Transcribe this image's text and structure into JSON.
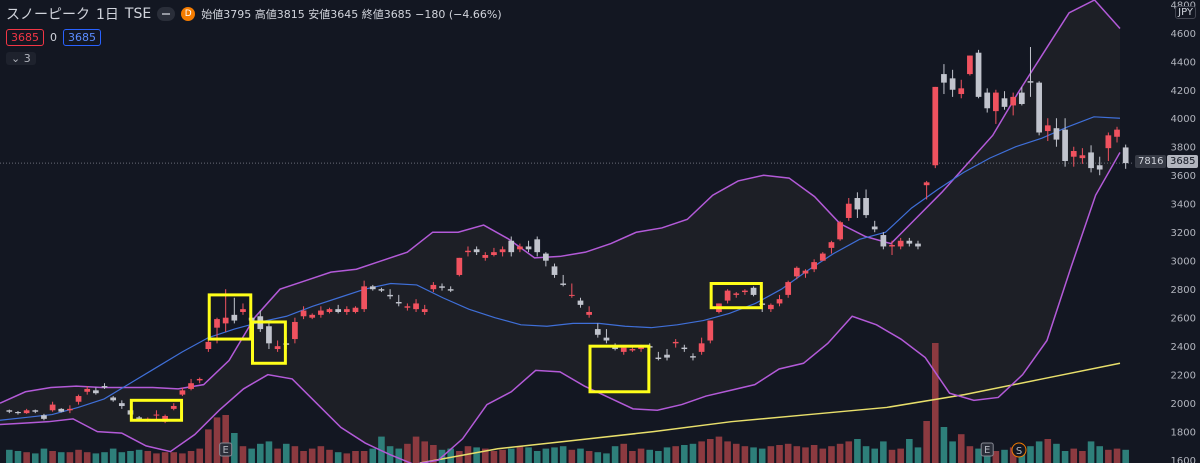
{
  "header": {
    "symbol": "スノーピーク",
    "interval": "1日",
    "exchange": "TSE",
    "badge": "D",
    "ohlc": "始値3795 高値3815 安値3645 終値3685 −180 (−4.66%)"
  },
  "price_boxes": {
    "bid": "3685",
    "spread": "0",
    "ask": "3685"
  },
  "indicators_toggle": "3",
  "currency": "JPY",
  "axis": {
    "ticks": [
      4800,
      4600,
      4400,
      4200,
      4000,
      3800,
      3600,
      3400,
      3200,
      3000,
      2800,
      2600,
      2400,
      2200,
      2000,
      1800,
      1600
    ],
    "ymin": 1580,
    "ymax": 4830,
    "current_price_label": "3685",
    "volume_label": "7816"
  },
  "markers": {
    "earnings": "E",
    "split": "S"
  },
  "colors": {
    "up": "#f0525f",
    "down": "#c1c4cd",
    "bb": "#b35ad8",
    "ma": "#3f6fd8",
    "ma_long": "#e8df6b",
    "highlight": "#ffff1a",
    "vol_up": "#8c3a40",
    "vol_down": "#2e7f7a"
  },
  "chart_data": {
    "type": "candlestick",
    "unit": "JPY",
    "candles": [
      [
        1950,
        1955,
        1930,
        1940
      ],
      [
        1938,
        1945,
        1920,
        1930
      ],
      [
        1930,
        1960,
        1925,
        1950
      ],
      [
        1950,
        1955,
        1930,
        1940
      ],
      [
        1915,
        1925,
        1880,
        1890
      ],
      [
        1950,
        2010,
        1940,
        1990
      ],
      [
        1960,
        1965,
        1935,
        1940
      ],
      [
        1950,
        1985,
        1930,
        1960
      ],
      [
        2010,
        2060,
        1990,
        2050
      ],
      [
        2080,
        2120,
        2060,
        2100
      ],
      [
        2090,
        2110,
        2060,
        2070
      ],
      [
        2120,
        2140,
        2100,
        2110
      ],
      [
        2040,
        2050,
        2010,
        2020
      ],
      [
        2000,
        2020,
        1960,
        1980
      ],
      [
        1950,
        1960,
        1910,
        1920
      ],
      [
        1900,
        1910,
        1880,
        1890
      ],
      [
        1880,
        1900,
        1870,
        1890
      ],
      [
        1920,
        1950,
        1880,
        1920
      ],
      [
        1870,
        1920,
        1860,
        1910
      ],
      [
        1960,
        2000,
        1950,
        1980
      ],
      [
        2060,
        2110,
        2050,
        2090
      ],
      [
        2100,
        2170,
        2090,
        2140
      ],
      [
        2160,
        2180,
        2140,
        2170
      ],
      [
        2380,
        2440,
        2360,
        2430
      ],
      [
        2530,
        2600,
        2420,
        2590
      ],
      [
        2560,
        2800,
        2500,
        2600
      ],
      [
        2620,
        2740,
        2560,
        2580
      ],
      [
        2640,
        2700,
        2620,
        2660
      ],
      [
        2600,
        2620,
        2560,
        2580
      ],
      [
        2610,
        2650,
        2500,
        2520
      ],
      [
        2540,
        2560,
        2380,
        2420
      ],
      [
        2380,
        2440,
        2360,
        2400
      ],
      [
        2420,
        2460,
        2380,
        2410
      ],
      [
        2450,
        2600,
        2420,
        2570
      ],
      [
        2610,
        2680,
        2590,
        2650
      ],
      [
        2600,
        2630,
        2590,
        2620
      ],
      [
        2620,
        2680,
        2600,
        2650
      ],
      [
        2640,
        2670,
        2630,
        2660
      ],
      [
        2660,
        2690,
        2630,
        2640
      ],
      [
        2640,
        2680,
        2620,
        2660
      ],
      [
        2640,
        2680,
        2630,
        2670
      ],
      [
        2660,
        2860,
        2640,
        2820
      ],
      [
        2820,
        2830,
        2790,
        2800
      ],
      [
        2800,
        2810,
        2780,
        2790
      ],
      [
        2760,
        2800,
        2730,
        2750
      ],
      [
        2710,
        2760,
        2680,
        2700
      ],
      [
        2670,
        2700,
        2650,
        2680
      ],
      [
        2660,
        2730,
        2640,
        2700
      ],
      [
        2640,
        2690,
        2620,
        2660
      ],
      [
        2800,
        2850,
        2780,
        2830
      ],
      [
        2820,
        2840,
        2790,
        2810
      ],
      [
        2800,
        2820,
        2780,
        2790
      ],
      [
        2900,
        3020,
        2890,
        3020
      ],
      [
        3060,
        3100,
        3030,
        3070
      ],
      [
        3080,
        3100,
        3040,
        3060
      ],
      [
        3020,
        3060,
        3000,
        3040
      ],
      [
        3040,
        3090,
        3030,
        3060
      ],
      [
        3060,
        3100,
        3030,
        3080
      ],
      [
        3140,
        3170,
        3030,
        3060
      ],
      [
        3080,
        3120,
        3060,
        3100
      ],
      [
        3100,
        3140,
        3060,
        3080
      ],
      [
        3150,
        3170,
        3030,
        3060
      ],
      [
        3050,
        3060,
        2960,
        3000
      ],
      [
        2960,
        2980,
        2880,
        2900
      ],
      [
        2840,
        2900,
        2820,
        2830
      ],
      [
        2760,
        2840,
        2740,
        2760
      ],
      [
        2720,
        2740,
        2670,
        2690
      ],
      [
        2620,
        2680,
        2600,
        2640
      ],
      [
        2520,
        2560,
        2460,
        2480
      ],
      [
        2460,
        2520,
        2420,
        2440
      ],
      [
        2400,
        2420,
        2370,
        2380
      ],
      [
        2360,
        2400,
        2340,
        2390
      ],
      [
        2370,
        2400,
        2360,
        2380
      ],
      [
        2380,
        2410,
        2360,
        2400
      ],
      [
        2400,
        2420,
        2370,
        2390
      ],
      [
        2320,
        2360,
        2300,
        2310
      ],
      [
        2340,
        2380,
        2300,
        2320
      ],
      [
        2420,
        2450,
        2390,
        2430
      ],
      [
        2390,
        2410,
        2360,
        2380
      ],
      [
        2330,
        2350,
        2300,
        2320
      ],
      [
        2360,
        2460,
        2340,
        2420
      ],
      [
        2440,
        2580,
        2420,
        2580
      ],
      [
        2640,
        2700,
        2630,
        2700
      ],
      [
        2720,
        2800,
        2700,
        2790
      ],
      [
        2760,
        2780,
        2740,
        2770
      ],
      [
        2780,
        2800,
        2760,
        2790
      ],
      [
        2810,
        2820,
        2750,
        2760
      ],
      [
        2700,
        2730,
        2640,
        2690
      ],
      [
        2660,
        2700,
        2640,
        2690
      ],
      [
        2700,
        2760,
        2680,
        2730
      ],
      [
        2760,
        2860,
        2740,
        2850
      ],
      [
        2890,
        2960,
        2870,
        2950
      ],
      [
        2910,
        2940,
        2880,
        2930
      ],
      [
        2940,
        3010,
        2920,
        2990
      ],
      [
        3000,
        3060,
        3000,
        3050
      ],
      [
        3090,
        3140,
        3050,
        3130
      ],
      [
        3150,
        3280,
        3140,
        3270
      ],
      [
        3300,
        3440,
        3280,
        3400
      ],
      [
        3440,
        3480,
        3300,
        3360
      ],
      [
        3440,
        3500,
        3300,
        3320
      ],
      [
        3240,
        3280,
        3200,
        3220
      ],
      [
        3180,
        3200,
        3080,
        3100
      ],
      [
        3100,
        3140,
        3040,
        3110
      ],
      [
        3100,
        3160,
        3080,
        3140
      ],
      [
        3140,
        3160,
        3100,
        3120
      ],
      [
        3120,
        3140,
        3080,
        3100
      ],
      [
        3530,
        3560,
        3430,
        3550
      ],
      [
        3670,
        4220,
        3650,
        4220
      ],
      [
        4310,
        4380,
        4170,
        4250
      ],
      [
        4280,
        4340,
        4150,
        4200
      ],
      [
        4170,
        4270,
        4140,
        4210
      ],
      [
        4310,
        4440,
        4300,
        4440
      ],
      [
        4460,
        4480,
        4140,
        4150
      ],
      [
        4180,
        4210,
        4040,
        4070
      ],
      [
        4050,
        4200,
        3960,
        4180
      ],
      [
        4140,
        4190,
        4060,
        4080
      ],
      [
        4090,
        4180,
        4020,
        4150
      ],
      [
        4180,
        4220,
        4090,
        4100
      ],
      [
        4260,
        4500,
        4150,
        4250
      ],
      [
        4250,
        4260,
        3880,
        3900
      ],
      [
        3910,
        4000,
        3840,
        3950
      ],
      [
        3930,
        4000,
        3800,
        3850
      ],
      [
        3920,
        4000,
        3660,
        3700
      ],
      [
        3730,
        3800,
        3660,
        3770
      ],
      [
        3720,
        3790,
        3680,
        3740
      ],
      [
        3760,
        3810,
        3620,
        3650
      ],
      [
        3670,
        3730,
        3600,
        3640
      ],
      [
        3790,
        3900,
        3700,
        3880
      ],
      [
        3870,
        3940,
        3830,
        3920
      ],
      [
        3795,
        3815,
        3645,
        3685
      ]
    ],
    "volumes": [
      11,
      10,
      9,
      8,
      12,
      10,
      9,
      9,
      11,
      9,
      8,
      9,
      12,
      9,
      10,
      11,
      10,
      8,
      9,
      9,
      8,
      10,
      12,
      28,
      38,
      40,
      25,
      14,
      12,
      16,
      18,
      12,
      16,
      14,
      10,
      12,
      14,
      11,
      9,
      8,
      10,
      10,
      12,
      22,
      14,
      12,
      16,
      22,
      18,
      15,
      11,
      12,
      10,
      14,
      13,
      12,
      10,
      11,
      12,
      14,
      13,
      10,
      12,
      13,
      14,
      11,
      12,
      10,
      9,
      8,
      14,
      16,
      10,
      12,
      11,
      10,
      13,
      14,
      15,
      16,
      18,
      20,
      22,
      18,
      16,
      14,
      13,
      12,
      14,
      15,
      16,
      14,
      13,
      15,
      12,
      14,
      16,
      18,
      20,
      14,
      12,
      18,
      11,
      12,
      20,
      13,
      35,
      100,
      30,
      18,
      24,
      14,
      12,
      16,
      10,
      11,
      13,
      12,
      14,
      18,
      20,
      16,
      10,
      12,
      10,
      18,
      14,
      11,
      12,
      11
    ],
    "bollinger_upper": [
      2000,
      2080,
      2110,
      2120,
      2110,
      2110,
      2110,
      2100,
      2130,
      2300,
      2600,
      2800,
      2860,
      2920,
      2940,
      3000,
      3060,
      3200,
      3200,
      3250,
      3150,
      3020,
      3030,
      3060,
      3120,
      3200,
      3230,
      3290,
      3460,
      3560,
      3600,
      3580,
      3450,
      3260,
      3170,
      3120,
      3300,
      3480,
      3680,
      3880,
      4180,
      4460,
      4740,
      4830,
      4630
    ],
    "bollinger_lower": [
      1850,
      1860,
      1870,
      1890,
      1800,
      1790,
      1700,
      1660,
      1780,
      1950,
      2100,
      2200,
      2170,
      2000,
      1830,
      1720,
      1640,
      1570,
      1600,
      1750,
      1990,
      2080,
      2230,
      2220,
      2120,
      2040,
      1960,
      1950,
      1990,
      2050,
      2090,
      2130,
      2240,
      2280,
      2420,
      2610,
      2550,
      2450,
      2320,
      2070,
      2020,
      2040,
      2200,
      2440,
      2960,
      3460,
      3760
    ],
    "ma_20": [
      1880,
      1900,
      1920,
      1970,
      2030,
      2140,
      2250,
      2360,
      2460,
      2520,
      2570,
      2610,
      2680,
      2740,
      2800,
      2840,
      2830,
      2740,
      2660,
      2600,
      2550,
      2540,
      2560,
      2560,
      2540,
      2530,
      2550,
      2580,
      2630,
      2700,
      2800,
      2930,
      3050,
      3150,
      3200,
      3370,
      3500,
      3620,
      3720,
      3800,
      3860,
      3940,
      4010,
      4000
    ],
    "ma_long": [
      1580,
      1680,
      1740,
      1800,
      1870,
      1920,
      1970,
      2060,
      2170,
      2280
    ],
    "highlights": 5
  }
}
